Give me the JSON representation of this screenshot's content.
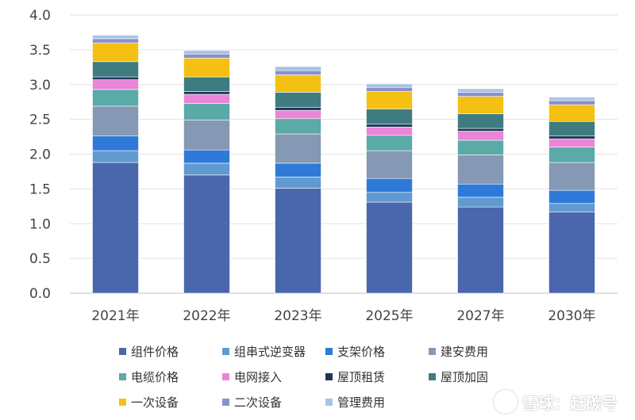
{
  "chart_data": {
    "type": "bar",
    "stacked": true,
    "title": "",
    "xlabel": "",
    "ylabel": "",
    "categories": [
      "2021年",
      "2022年",
      "2023年",
      "2025年",
      "2027年",
      "2030年"
    ],
    "ylim": [
      0,
      4.0
    ],
    "yticks": [
      "0.0",
      "0.5",
      "1.0",
      "1.5",
      "2.0",
      "2.5",
      "3.0",
      "3.5",
      "4.0"
    ],
    "grid": true,
    "legend_position": "bottom",
    "series": [
      {
        "name": "组件价格",
        "color": "#4a66ad",
        "values": [
          1.88,
          1.7,
          1.51,
          1.31,
          1.24,
          1.17
        ]
      },
      {
        "name": "组串式逆变器",
        "color": "#609ad0",
        "values": [
          0.17,
          0.17,
          0.16,
          0.14,
          0.14,
          0.12
        ]
      },
      {
        "name": "支架价格",
        "color": "#2f7ad9",
        "values": [
          0.21,
          0.19,
          0.2,
          0.2,
          0.19,
          0.19
        ]
      },
      {
        "name": "建安费用",
        "color": "#8598b4",
        "values": [
          0.43,
          0.43,
          0.42,
          0.4,
          0.42,
          0.4
        ]
      },
      {
        "name": "电缆价格",
        "color": "#5aaaa8",
        "values": [
          0.24,
          0.24,
          0.22,
          0.22,
          0.21,
          0.22
        ]
      },
      {
        "name": "电网接入",
        "color": "#ea86d8",
        "values": [
          0.14,
          0.13,
          0.12,
          0.12,
          0.13,
          0.12
        ]
      },
      {
        "name": "屋顶租赁",
        "color": "#1e3559",
        "values": [
          0.04,
          0.04,
          0.04,
          0.04,
          0.04,
          0.04
        ]
      },
      {
        "name": "屋顶加固",
        "color": "#3f7c80",
        "values": [
          0.22,
          0.21,
          0.22,
          0.22,
          0.21,
          0.21
        ]
      },
      {
        "name": "一次设备",
        "color": "#f4c012",
        "values": [
          0.27,
          0.27,
          0.25,
          0.25,
          0.25,
          0.24
        ]
      },
      {
        "name": "二次设备",
        "color": "#8a90cc",
        "values": [
          0.06,
          0.06,
          0.06,
          0.06,
          0.06,
          0.06
        ]
      },
      {
        "name": "管理费用",
        "color": "#a8c4e4",
        "values": [
          0.05,
          0.05,
          0.06,
          0.05,
          0.05,
          0.05
        ]
      }
    ]
  },
  "watermark": {
    "text": "雪球：赶碳号"
  }
}
